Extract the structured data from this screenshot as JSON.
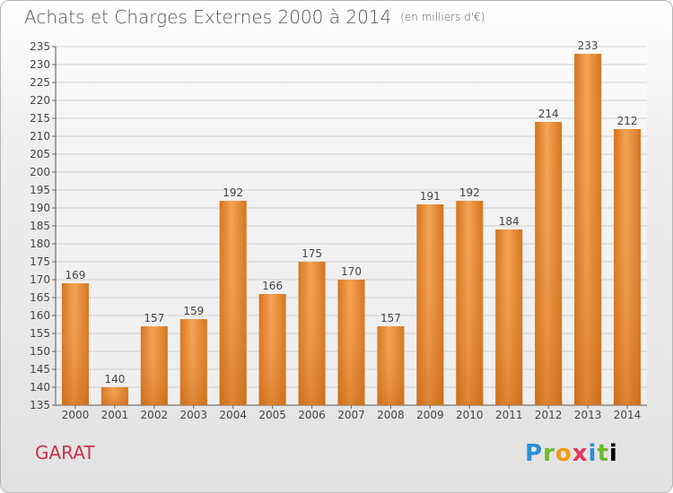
{
  "title": "Achats et Charges Externes 2000 à 2014",
  "unit": "(en milliers d'€)",
  "commune": "GARAT",
  "brand": "Proxiti",
  "colors": {
    "bar_light": "#f5a356",
    "bar_dark": "#d3741c",
    "grid": "#cfcfcf",
    "text": "#444444"
  },
  "chart_data": {
    "type": "bar",
    "title": "Achats et Charges Externes 2000 à 2014",
    "categories": [
      "2000",
      "2001",
      "2002",
      "2003",
      "2004",
      "2005",
      "2006",
      "2007",
      "2008",
      "2009",
      "2010",
      "2011",
      "2012",
      "2013",
      "2014"
    ],
    "values": [
      169,
      140,
      157,
      159,
      192,
      166,
      175,
      170,
      157,
      191,
      192,
      184,
      214,
      233,
      212
    ],
    "ylim": [
      135,
      235
    ],
    "yticks": [
      135,
      140,
      145,
      150,
      155,
      160,
      165,
      170,
      175,
      180,
      185,
      190,
      195,
      200,
      205,
      210,
      215,
      220,
      225,
      230,
      235
    ],
    "grid": true,
    "xlabel": "",
    "ylabel": ""
  }
}
